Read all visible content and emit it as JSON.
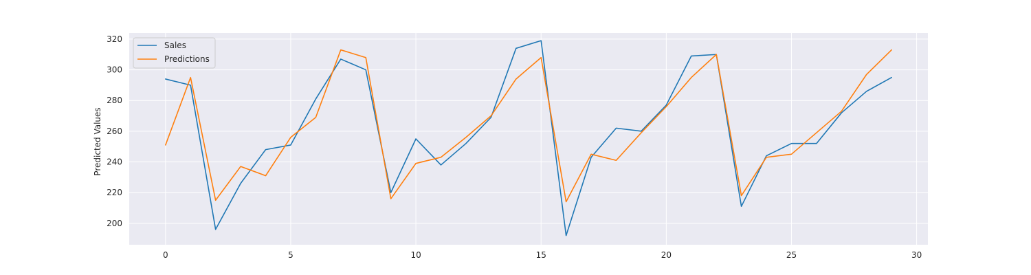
{
  "chart_data": {
    "type": "line",
    "title": "",
    "xlabel": "",
    "ylabel": "Predicted Values",
    "xlim": [
      -1.45,
      30.45
    ],
    "ylim": [
      186,
      324
    ],
    "x_ticks": [
      0,
      5,
      10,
      15,
      20,
      25,
      30
    ],
    "y_ticks": [
      200,
      220,
      240,
      260,
      280,
      300,
      320
    ],
    "grid": true,
    "legend_position": "top-left",
    "x": [
      0,
      1,
      2,
      3,
      4,
      5,
      6,
      7,
      8,
      9,
      10,
      11,
      12,
      13,
      14,
      15,
      16,
      17,
      18,
      19,
      20,
      21,
      22,
      23,
      24,
      25,
      26,
      27,
      28,
      29
    ],
    "series": [
      {
        "name": "Sales",
        "color": "#1f77b4",
        "values": [
          294,
          290,
          196,
          226,
          248,
          251,
          281,
          307,
          300,
          220,
          255,
          238,
          252,
          269,
          314,
          319,
          192,
          243,
          262,
          260,
          277,
          309,
          310,
          211,
          244,
          252,
          252,
          272,
          286,
          295
        ]
      },
      {
        "name": "Predictions",
        "color": "#ff7f0e",
        "values": [
          251,
          295,
          215,
          237,
          231,
          256,
          269,
          313,
          308,
          216,
          239,
          243,
          256,
          270,
          294,
          308,
          214,
          245,
          241,
          259,
          276,
          295,
          310,
          218,
          243,
          245,
          259,
          273,
          297,
          313
        ]
      }
    ],
    "colors": {
      "plot_background": "#eaeaf2",
      "grid": "#ffffff"
    }
  }
}
